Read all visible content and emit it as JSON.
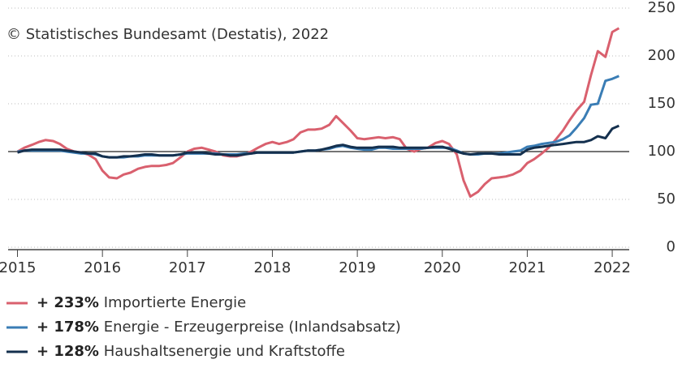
{
  "chart_data": {
    "type": "line",
    "annotation": "© Statistisches Bundesamt (Destatis), 2022",
    "x": [
      2015.0,
      2015.08,
      2015.17,
      2015.25,
      2015.33,
      2015.42,
      2015.5,
      2015.58,
      2015.67,
      2015.75,
      2015.83,
      2015.92,
      2016.0,
      2016.08,
      2016.17,
      2016.25,
      2016.33,
      2016.42,
      2016.5,
      2016.58,
      2016.67,
      2016.75,
      2016.83,
      2016.92,
      2017.0,
      2017.08,
      2017.17,
      2017.25,
      2017.33,
      2017.42,
      2017.5,
      2017.58,
      2017.67,
      2017.75,
      2017.83,
      2017.92,
      2018.0,
      2018.08,
      2018.17,
      2018.25,
      2018.33,
      2018.42,
      2018.5,
      2018.58,
      2018.67,
      2018.75,
      2018.83,
      2018.92,
      2019.0,
      2019.08,
      2019.17,
      2019.25,
      2019.33,
      2019.42,
      2019.5,
      2019.58,
      2019.67,
      2019.75,
      2019.83,
      2019.92,
      2020.0,
      2020.08,
      2020.17,
      2020.25,
      2020.33,
      2020.42,
      2020.5,
      2020.58,
      2020.67,
      2020.75,
      2020.83,
      2020.92,
      2021.0,
      2021.08,
      2021.17,
      2021.25,
      2021.33,
      2021.42,
      2021.5,
      2021.58,
      2021.67,
      2021.75,
      2021.83,
      2021.92,
      2022.0,
      2022.08
    ],
    "series": [
      {
        "name": "Importierte Energie",
        "change": "+ 233%",
        "color": "#d9606e",
        "values": [
          100,
          104,
          107,
          110,
          112,
          111,
          108,
          103,
          100,
          99,
          97,
          92,
          80,
          73,
          72,
          76,
          78,
          82,
          84,
          85,
          85,
          86,
          88,
          94,
          100,
          103,
          104,
          102,
          100,
          96,
          95,
          95,
          97,
          100,
          104,
          108,
          110,
          108,
          110,
          113,
          120,
          123,
          123,
          124,
          128,
          137,
          130,
          122,
          114,
          113,
          114,
          115,
          114,
          115,
          113,
          103,
          100,
          103,
          104,
          109,
          111,
          108,
          97,
          70,
          53,
          58,
          66,
          72,
          73,
          74,
          76,
          80,
          88,
          92,
          98,
          104,
          112,
          122,
          133,
          143,
          152,
          180,
          205,
          199,
          225,
          229
        ]
      },
      {
        "name": "Energie - Erzeugerpreise (Inlandsabsatz)",
        "change": "+ 178%",
        "color": "#3a7db5",
        "values": [
          100,
          101,
          101,
          101,
          101,
          101,
          101,
          100,
          99,
          98,
          98,
          97,
          95,
          94,
          94,
          94,
          95,
          95,
          96,
          96,
          96,
          96,
          96,
          97,
          98,
          98,
          98,
          98,
          98,
          97,
          97,
          97,
          98,
          98,
          99,
          99,
          99,
          99,
          99,
          99,
          100,
          101,
          101,
          102,
          103,
          105,
          106,
          104,
          103,
          102,
          102,
          104,
          104,
          103,
          103,
          103,
          103,
          103,
          104,
          104,
          104,
          104,
          101,
          98,
          97,
          97,
          98,
          98,
          98,
          99,
          100,
          101,
          105,
          106,
          108,
          109,
          110,
          113,
          117,
          125,
          135,
          149,
          150,
          174,
          176,
          179
        ]
      },
      {
        "name": "Haushaltsenergie und Kraftstoffe",
        "change": "+ 128%",
        "color": "#14304e",
        "values": [
          99,
          101,
          102,
          102,
          102,
          102,
          102,
          101,
          100,
          99,
          98,
          98,
          95,
          94,
          94,
          95,
          95,
          96,
          97,
          97,
          96,
          96,
          96,
          97,
          99,
          99,
          99,
          98,
          97,
          97,
          96,
          96,
          97,
          98,
          99,
          99,
          99,
          99,
          99,
          99,
          100,
          101,
          101,
          102,
          104,
          106,
          107,
          105,
          104,
          104,
          104,
          105,
          105,
          105,
          104,
          104,
          104,
          104,
          104,
          105,
          105,
          103,
          100,
          98,
          97,
          98,
          98,
          98,
          97,
          97,
          97,
          97,
          102,
          104,
          105,
          106,
          107,
          108,
          109,
          110,
          110,
          112,
          116,
          114,
          124,
          127
        ]
      }
    ],
    "xlim": [
      2014.89,
      2022.2
    ],
    "xticks": [
      2015,
      2016,
      2017,
      2018,
      2019,
      2020,
      2021,
      2022
    ],
    "ylim": [
      0,
      250
    ],
    "yticks": [
      0,
      50,
      100,
      150,
      200,
      250
    ],
    "reference_line": 100,
    "grid": true
  }
}
